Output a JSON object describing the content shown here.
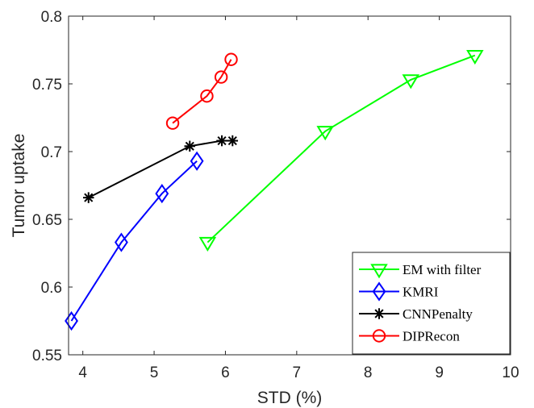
{
  "chart_data": {
    "type": "line",
    "xlabel": "STD (%)",
    "ylabel": "Tumor uptake",
    "xlim": [
      3.8,
      10
    ],
    "ylim": [
      0.55,
      0.8
    ],
    "xticks": [
      "4",
      "5",
      "6",
      "7",
      "8",
      "9",
      "10"
    ],
    "yticks": [
      "0.55",
      "0.6",
      "0.65",
      "0.7",
      "0.75",
      "0.8"
    ],
    "grid": false,
    "legend_position": "bottom-right",
    "series": [
      {
        "name": "EM with filter",
        "color": "#00ff00",
        "marker": "triangle-down",
        "x": [
          5.75,
          7.4,
          8.6,
          9.5
        ],
        "y": [
          0.633,
          0.715,
          0.753,
          0.771
        ]
      },
      {
        "name": "KMRI",
        "color": "#0000ff",
        "marker": "diamond",
        "x": [
          3.84,
          4.54,
          5.11,
          5.6
        ],
        "y": [
          0.575,
          0.633,
          0.669,
          0.693
        ]
      },
      {
        "name": "CNNPenalty",
        "color": "#000000",
        "marker": "asterisk",
        "x": [
          4.08,
          5.5,
          5.95,
          6.1
        ],
        "y": [
          0.666,
          0.704,
          0.708,
          0.708
        ]
      },
      {
        "name": "DIPRecon",
        "color": "#ff0000",
        "marker": "circle",
        "x": [
          5.26,
          5.74,
          5.94,
          6.08
        ],
        "y": [
          0.721,
          0.741,
          0.755,
          0.768
        ]
      }
    ]
  }
}
